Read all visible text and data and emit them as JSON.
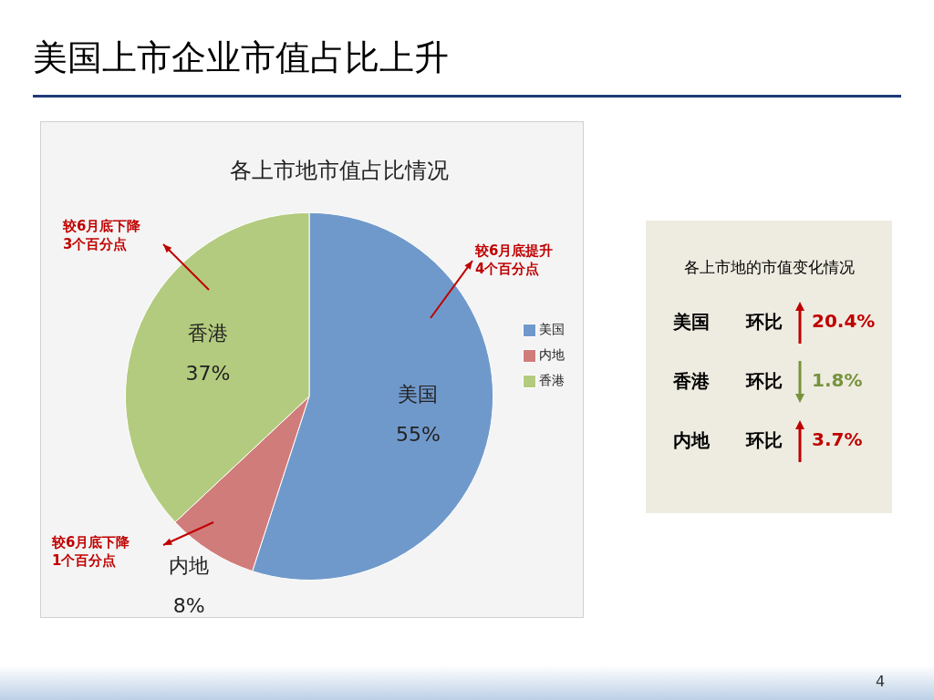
{
  "chart_data": [
    {
      "type": "pie",
      "title": "美国上市企业市值占比上升",
      "subtitle": "各上市地市值占比情况",
      "categories": [
        "美国",
        "内地",
        "香港"
      ],
      "values": [
        55,
        8,
        37
      ],
      "value_labels": [
        "55%",
        "8%",
        "37%"
      ],
      "colors": [
        "#7099cb",
        "#d07c7a",
        "#b3cb7e"
      ],
      "data_labels": true,
      "legend": "right",
      "annotations": [
        "较6月底下降\n3个百分点",
        "较6月底提升\n4个百分点",
        "较6月底下降\n1个百分点",
        "4"
      ]
    },
    {
      "type": "other",
      "title": "各上市地的市值变化情况",
      "categories": [
        "美国",
        "香港",
        "内地"
      ],
      "annotations": [
        "环比",
        "20.4%",
        "环比",
        "1.8%",
        "环比",
        "3.7%"
      ]
    }
  ]
}
